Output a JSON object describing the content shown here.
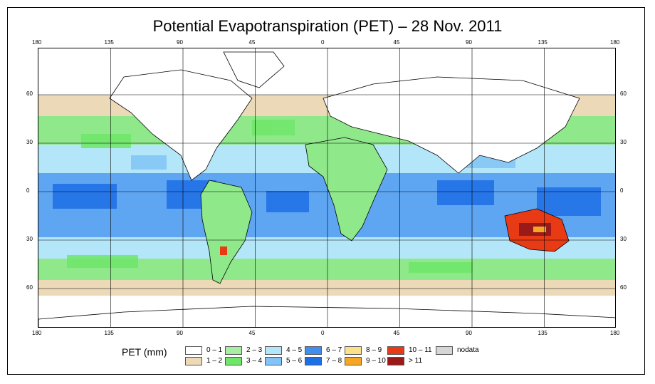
{
  "title": "Potential Evapotranspiration (PET) – 28 Nov. 2011",
  "axes": {
    "top_lon": [
      "180",
      "135",
      "90",
      "45",
      "0",
      "45",
      "90",
      "135",
      "180"
    ],
    "bottom_lon": [
      "180",
      "135",
      "90",
      "45",
      "0",
      "45",
      "90",
      "135",
      "180"
    ],
    "left_lat": [
      "60",
      "30",
      "0",
      "30",
      "60"
    ],
    "right_lat": [
      "60",
      "30",
      "0",
      "30",
      "60"
    ]
  },
  "legend": {
    "label": "PET (mm)",
    "items": [
      {
        "label": "0 – 1",
        "color": "#ffffff"
      },
      {
        "label": "1 – 2",
        "color": "#ecd9b8"
      },
      {
        "label": "2 – 3",
        "color": "#a8eea0"
      },
      {
        "label": "3 – 4",
        "color": "#6fe66a"
      },
      {
        "label": "4 – 5",
        "color": "#b4e6fa"
      },
      {
        "label": "5 – 6",
        "color": "#82c4f5"
      },
      {
        "label": "6 – 7",
        "color": "#3f8ef0"
      },
      {
        "label": "7 – 8",
        "color": "#1e6ee6"
      },
      {
        "label": "8 – 9",
        "color": "#fbe28a"
      },
      {
        "label": "9 – 10",
        "color": "#f5a623"
      },
      {
        "label": "10 – 11",
        "color": "#e83a14"
      },
      {
        "label": "> 11",
        "color": "#9a1a1a"
      },
      {
        "label": "nodata",
        "color": "#d6d6d6"
      }
    ]
  }
}
